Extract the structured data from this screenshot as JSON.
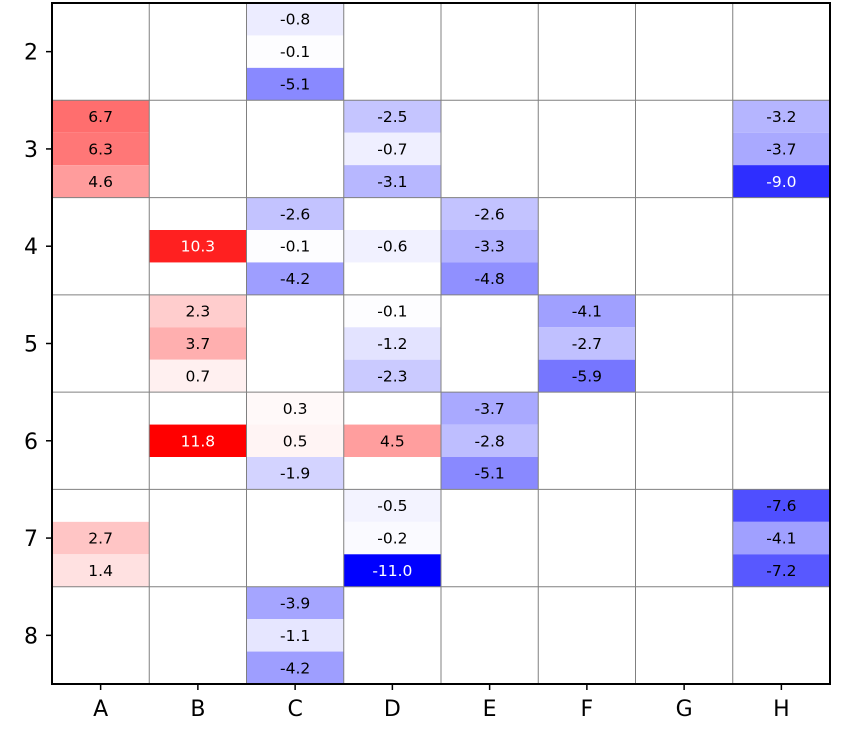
{
  "chart_data": {
    "type": "heatmap",
    "title": "",
    "xlabel": "",
    "ylabel": "",
    "columns": [
      "A",
      "B",
      "C",
      "D",
      "E",
      "F",
      "G",
      "H"
    ],
    "rows": [
      "2",
      "3",
      "4",
      "5",
      "6",
      "7",
      "8"
    ],
    "sub_rows": 3,
    "color_scale": {
      "min": -11.0,
      "max": 11.8,
      "negative": "#0000ff",
      "positive": "#ff0000",
      "zero": "#ffffff"
    },
    "cells": [
      {
        "col": "C",
        "row": "2",
        "values": [
          -0.8,
          -0.1,
          -5.1
        ]
      },
      {
        "col": "A",
        "row": "3",
        "values": [
          6.7,
          6.3,
          4.6
        ]
      },
      {
        "col": "D",
        "row": "3",
        "values": [
          -2.5,
          -0.7,
          -3.1
        ]
      },
      {
        "col": "H",
        "row": "3",
        "values": [
          -3.2,
          -3.7,
          -9.0
        ]
      },
      {
        "col": "B",
        "row": "4",
        "values": [
          null,
          10.3,
          null
        ]
      },
      {
        "col": "C",
        "row": "4",
        "values": [
          -2.6,
          -0.1,
          -4.2
        ]
      },
      {
        "col": "D",
        "row": "4",
        "values": [
          null,
          -0.6,
          null
        ]
      },
      {
        "col": "E",
        "row": "4",
        "values": [
          -2.6,
          -3.3,
          -4.8
        ]
      },
      {
        "col": "B",
        "row": "5",
        "values": [
          2.3,
          3.7,
          0.7
        ]
      },
      {
        "col": "D",
        "row": "5",
        "values": [
          -0.1,
          -1.2,
          -2.3
        ]
      },
      {
        "col": "F",
        "row": "5",
        "values": [
          -4.1,
          -2.7,
          -5.9
        ]
      },
      {
        "col": "B",
        "row": "6",
        "values": [
          null,
          11.8,
          null
        ]
      },
      {
        "col": "C",
        "row": "6",
        "values": [
          0.3,
          0.5,
          -1.9
        ]
      },
      {
        "col": "D",
        "row": "6",
        "values": [
          null,
          4.5,
          null
        ]
      },
      {
        "col": "E",
        "row": "6",
        "values": [
          -3.7,
          -2.8,
          -5.1
        ]
      },
      {
        "col": "A",
        "row": "7",
        "values": [
          null,
          2.7,
          1.4
        ]
      },
      {
        "col": "D",
        "row": "7",
        "values": [
          -0.5,
          -0.2,
          -11.0
        ]
      },
      {
        "col": "H",
        "row": "7",
        "values": [
          -7.6,
          -4.1,
          -7.2
        ]
      },
      {
        "col": "C",
        "row": "8",
        "values": [
          -3.9,
          -1.1,
          -4.2
        ]
      }
    ]
  }
}
